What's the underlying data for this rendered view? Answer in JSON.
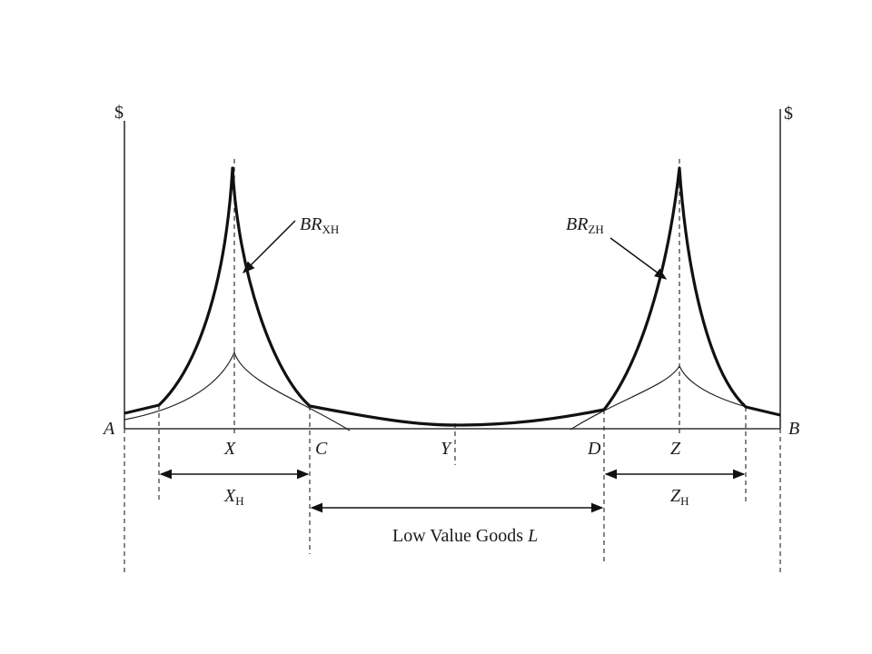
{
  "figure": {
    "left_axis_unit": "$",
    "right_axis_unit": "$",
    "points": {
      "a": "A",
      "b": "B",
      "c": "C",
      "d": "D",
      "x": "X",
      "y": "Y",
      "z": "Z"
    },
    "curves": {
      "br_xh": {
        "base": "BR",
        "sub": "XH"
      },
      "br_zh": {
        "base": "BR",
        "sub": "ZH"
      }
    },
    "ranges": {
      "x_h": {
        "base": "X",
        "sub": "H"
      },
      "z_h": {
        "base": "Z",
        "sub": "H"
      },
      "low_value": {
        "text": "Low Value Goods ",
        "var": "L"
      }
    }
  }
}
